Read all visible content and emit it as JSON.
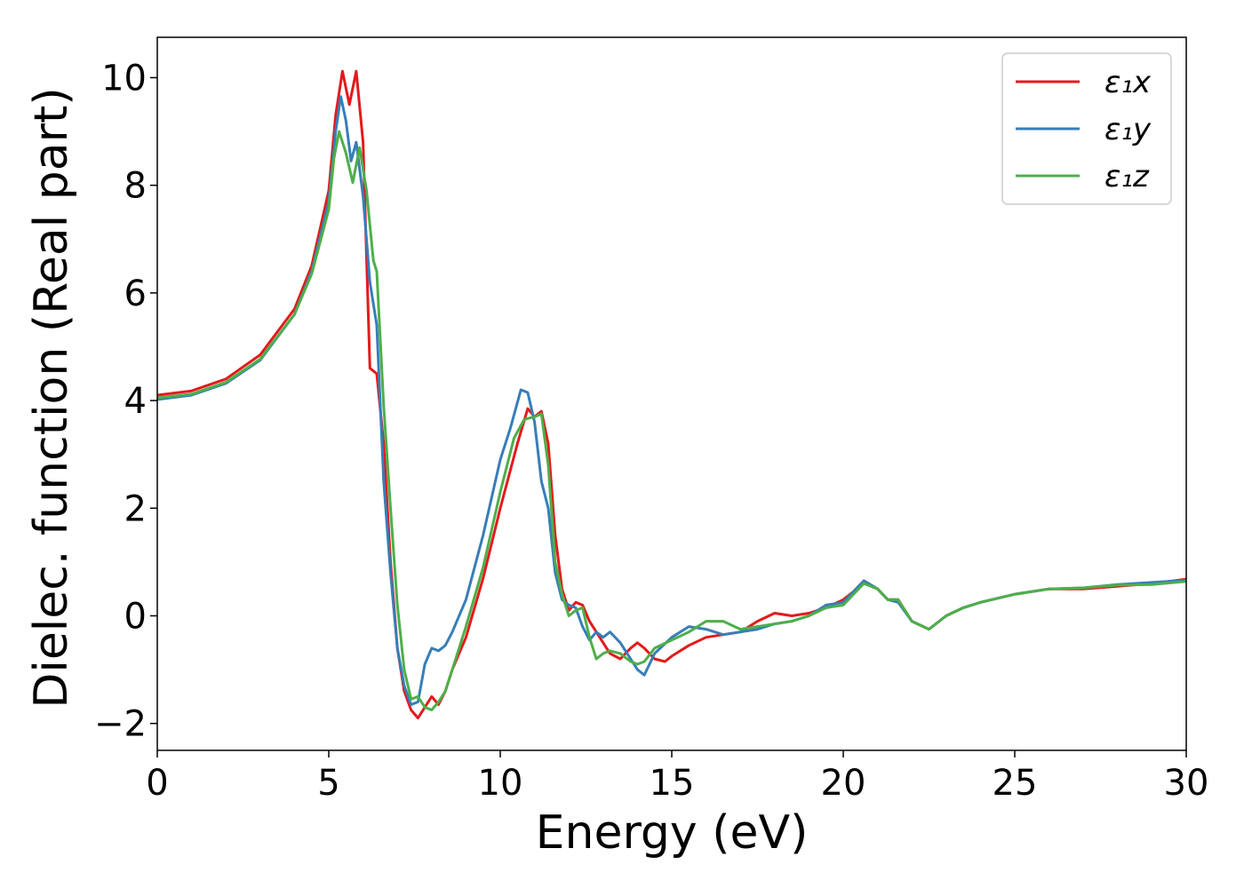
{
  "chart_data": {
    "type": "line",
    "title": "",
    "xlabel": "Energy (eV)",
    "ylabel": "Dielec. function (Real part)",
    "xlim": [
      0,
      30
    ],
    "ylim": [
      -2.5,
      10.75
    ],
    "xticks": [
      0,
      5,
      10,
      15,
      20,
      25,
      30
    ],
    "yticks": [
      -2,
      0,
      2,
      4,
      6,
      8,
      10
    ],
    "xtick_labels": [
      "0",
      "5",
      "10",
      "15",
      "20",
      "25",
      "30"
    ],
    "ytick_labels": [
      "−2",
      "0",
      "2",
      "4",
      "6",
      "8",
      "10"
    ],
    "grid": false,
    "legend_position": "top-right",
    "series": [
      {
        "name": "ε₁x",
        "color": "#e41a1c",
        "points": [
          [
            0,
            4.1
          ],
          [
            1,
            4.18
          ],
          [
            2,
            4.4
          ],
          [
            3,
            4.85
          ],
          [
            4,
            5.7
          ],
          [
            4.5,
            6.5
          ],
          [
            5,
            7.9
          ],
          [
            5.2,
            9.3
          ],
          [
            5.4,
            10.12
          ],
          [
            5.6,
            9.5
          ],
          [
            5.8,
            10.12
          ],
          [
            6.0,
            8.8
          ],
          [
            6.2,
            4.6
          ],
          [
            6.4,
            4.5
          ],
          [
            6.6,
            3.2
          ],
          [
            6.8,
            1.0
          ],
          [
            7.0,
            -0.6
          ],
          [
            7.2,
            -1.4
          ],
          [
            7.4,
            -1.75
          ],
          [
            7.6,
            -1.9
          ],
          [
            7.8,
            -1.7
          ],
          [
            8.0,
            -1.5
          ],
          [
            8.2,
            -1.65
          ],
          [
            8.4,
            -1.4
          ],
          [
            8.6,
            -1.0
          ],
          [
            9.0,
            -0.4
          ],
          [
            9.5,
            0.7
          ],
          [
            10.0,
            2.0
          ],
          [
            10.5,
            3.2
          ],
          [
            10.8,
            3.85
          ],
          [
            11.0,
            3.7
          ],
          [
            11.2,
            3.8
          ],
          [
            11.4,
            3.2
          ],
          [
            11.6,
            1.5
          ],
          [
            11.8,
            0.5
          ],
          [
            12.0,
            0.1
          ],
          [
            12.2,
            0.25
          ],
          [
            12.4,
            0.2
          ],
          [
            12.6,
            -0.1
          ],
          [
            12.8,
            -0.3
          ],
          [
            13.0,
            -0.5
          ],
          [
            13.2,
            -0.7
          ],
          [
            13.5,
            -0.8
          ],
          [
            13.8,
            -0.6
          ],
          [
            14.0,
            -0.5
          ],
          [
            14.2,
            -0.6
          ],
          [
            14.5,
            -0.8
          ],
          [
            14.8,
            -0.85
          ],
          [
            15.0,
            -0.75
          ],
          [
            15.5,
            -0.55
          ],
          [
            16.0,
            -0.4
          ],
          [
            16.5,
            -0.35
          ],
          [
            17.0,
            -0.3
          ],
          [
            17.5,
            -0.1
          ],
          [
            18.0,
            0.05
          ],
          [
            18.5,
            0.0
          ],
          [
            19.0,
            0.05
          ],
          [
            19.5,
            0.15
          ],
          [
            20.0,
            0.3
          ],
          [
            20.3,
            0.45
          ],
          [
            20.6,
            0.65
          ],
          [
            21.0,
            0.5
          ],
          [
            21.3,
            0.3
          ],
          [
            21.6,
            0.3
          ],
          [
            22.0,
            -0.1
          ],
          [
            22.5,
            -0.25
          ],
          [
            23.0,
            0.0
          ],
          [
            23.5,
            0.15
          ],
          [
            24.0,
            0.25
          ],
          [
            25.0,
            0.4
          ],
          [
            26.0,
            0.5
          ],
          [
            27.0,
            0.5
          ],
          [
            28.0,
            0.55
          ],
          [
            29.0,
            0.6
          ],
          [
            30.0,
            0.68
          ]
        ]
      },
      {
        "name": "ε₁y",
        "color": "#377eb8",
        "points": [
          [
            0,
            4.02
          ],
          [
            1,
            4.1
          ],
          [
            2,
            4.32
          ],
          [
            3,
            4.75
          ],
          [
            4,
            5.6
          ],
          [
            4.5,
            6.4
          ],
          [
            5,
            7.7
          ],
          [
            5.2,
            9.0
          ],
          [
            5.35,
            9.65
          ],
          [
            5.5,
            9.2
          ],
          [
            5.65,
            8.45
          ],
          [
            5.8,
            8.8
          ],
          [
            6.0,
            7.8
          ],
          [
            6.2,
            6.2
          ],
          [
            6.4,
            5.4
          ],
          [
            6.6,
            2.5
          ],
          [
            6.8,
            0.8
          ],
          [
            7.0,
            -0.6
          ],
          [
            7.2,
            -1.3
          ],
          [
            7.4,
            -1.65
          ],
          [
            7.6,
            -1.6
          ],
          [
            7.8,
            -0.9
          ],
          [
            8.0,
            -0.6
          ],
          [
            8.2,
            -0.65
          ],
          [
            8.4,
            -0.55
          ],
          [
            8.6,
            -0.3
          ],
          [
            9.0,
            0.3
          ],
          [
            9.5,
            1.5
          ],
          [
            10.0,
            2.9
          ],
          [
            10.3,
            3.5
          ],
          [
            10.6,
            4.2
          ],
          [
            10.8,
            4.15
          ],
          [
            11.0,
            3.6
          ],
          [
            11.2,
            2.5
          ],
          [
            11.4,
            2.0
          ],
          [
            11.6,
            0.8
          ],
          [
            11.8,
            0.3
          ],
          [
            12.0,
            0.2
          ],
          [
            12.2,
            0.15
          ],
          [
            12.4,
            -0.2
          ],
          [
            12.6,
            -0.45
          ],
          [
            12.8,
            -0.3
          ],
          [
            13.0,
            -0.4
          ],
          [
            13.2,
            -0.3
          ],
          [
            13.5,
            -0.5
          ],
          [
            13.8,
            -0.8
          ],
          [
            14.0,
            -1.0
          ],
          [
            14.2,
            -1.1
          ],
          [
            14.5,
            -0.7
          ],
          [
            15.0,
            -0.4
          ],
          [
            15.5,
            -0.2
          ],
          [
            16.0,
            -0.25
          ],
          [
            16.5,
            -0.35
          ],
          [
            17.0,
            -0.3
          ],
          [
            17.5,
            -0.25
          ],
          [
            18.0,
            -0.15
          ],
          [
            18.5,
            -0.1
          ],
          [
            19.0,
            0.0
          ],
          [
            19.5,
            0.2
          ],
          [
            20.0,
            0.25
          ],
          [
            20.3,
            0.45
          ],
          [
            20.6,
            0.65
          ],
          [
            21.0,
            0.5
          ],
          [
            21.3,
            0.3
          ],
          [
            21.6,
            0.25
          ],
          [
            22.0,
            -0.1
          ],
          [
            22.5,
            -0.25
          ],
          [
            23.0,
            0.0
          ],
          [
            23.5,
            0.15
          ],
          [
            24.0,
            0.25
          ],
          [
            25.0,
            0.4
          ],
          [
            26.0,
            0.5
          ],
          [
            27.0,
            0.52
          ],
          [
            28.0,
            0.58
          ],
          [
            29.0,
            0.62
          ],
          [
            30.0,
            0.66
          ]
        ]
      },
      {
        "name": "ε₁z",
        "color": "#4daf4a",
        "points": [
          [
            0,
            4.05
          ],
          [
            1,
            4.12
          ],
          [
            2,
            4.34
          ],
          [
            3,
            4.77
          ],
          [
            4,
            5.6
          ],
          [
            4.5,
            6.35
          ],
          [
            5,
            7.55
          ],
          [
            5.15,
            8.5
          ],
          [
            5.3,
            9.0
          ],
          [
            5.5,
            8.6
          ],
          [
            5.7,
            8.05
          ],
          [
            5.9,
            8.7
          ],
          [
            6.1,
            7.9
          ],
          [
            6.3,
            6.6
          ],
          [
            6.4,
            6.4
          ],
          [
            6.6,
            3.9
          ],
          [
            6.8,
            2.0
          ],
          [
            7.0,
            0.2
          ],
          [
            7.2,
            -1.0
          ],
          [
            7.4,
            -1.55
          ],
          [
            7.6,
            -1.5
          ],
          [
            7.8,
            -1.7
          ],
          [
            8.0,
            -1.75
          ],
          [
            8.2,
            -1.6
          ],
          [
            8.4,
            -1.4
          ],
          [
            8.6,
            -1.0
          ],
          [
            9.0,
            -0.2
          ],
          [
            9.5,
            0.9
          ],
          [
            10.0,
            2.3
          ],
          [
            10.4,
            3.3
          ],
          [
            10.7,
            3.65
          ],
          [
            11.0,
            3.7
          ],
          [
            11.2,
            3.75
          ],
          [
            11.4,
            2.8
          ],
          [
            11.6,
            1.0
          ],
          [
            11.8,
            0.4
          ],
          [
            12.0,
            0.0
          ],
          [
            12.2,
            0.1
          ],
          [
            12.4,
            0.15
          ],
          [
            12.6,
            -0.4
          ],
          [
            12.8,
            -0.8
          ],
          [
            13.0,
            -0.7
          ],
          [
            13.2,
            -0.65
          ],
          [
            13.5,
            -0.7
          ],
          [
            13.8,
            -0.85
          ],
          [
            14.0,
            -0.9
          ],
          [
            14.2,
            -0.85
          ],
          [
            14.5,
            -0.6
          ],
          [
            15.0,
            -0.45
          ],
          [
            15.5,
            -0.3
          ],
          [
            16.0,
            -0.1
          ],
          [
            16.5,
            -0.1
          ],
          [
            17.0,
            -0.25
          ],
          [
            17.5,
            -0.2
          ],
          [
            18.0,
            -0.15
          ],
          [
            18.5,
            -0.1
          ],
          [
            19.0,
            0.0
          ],
          [
            19.5,
            0.15
          ],
          [
            20.0,
            0.2
          ],
          [
            20.3,
            0.4
          ],
          [
            20.6,
            0.6
          ],
          [
            21.0,
            0.5
          ],
          [
            21.3,
            0.3
          ],
          [
            21.6,
            0.3
          ],
          [
            22.0,
            -0.1
          ],
          [
            22.5,
            -0.25
          ],
          [
            23.0,
            0.0
          ],
          [
            23.5,
            0.15
          ],
          [
            24.0,
            0.25
          ],
          [
            25.0,
            0.4
          ],
          [
            26.0,
            0.5
          ],
          [
            27.0,
            0.52
          ],
          [
            28.0,
            0.57
          ],
          [
            29.0,
            0.58
          ],
          [
            30.0,
            0.64
          ]
        ]
      }
    ]
  }
}
